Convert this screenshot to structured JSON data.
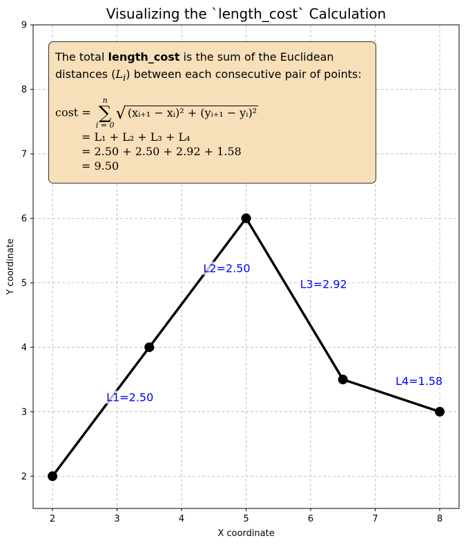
{
  "chart_data": {
    "type": "line",
    "title": "Visualizing the `length_cost` Calculation",
    "xlabel": "X coordinate",
    "ylabel": "Y coordinate",
    "xlim": [
      1.7,
      8.3
    ],
    "ylim": [
      1.5,
      9.0
    ],
    "xticks": [
      2,
      3,
      4,
      5,
      6,
      7,
      8
    ],
    "yticks": [
      2,
      3,
      4,
      5,
      6,
      7,
      8,
      9
    ],
    "grid": true,
    "series": [
      {
        "x": [
          2,
          3.5,
          5,
          6.5,
          8
        ],
        "y": [
          2,
          4,
          6,
          3.5,
          3
        ]
      }
    ],
    "annotations": [
      {
        "text": "L1=2.50",
        "x": 3.2,
        "y": 3.23
      },
      {
        "text": "L2=2.50",
        "x": 4.7,
        "y": 5.23
      },
      {
        "text": "L3=2.92",
        "x": 6.2,
        "y": 4.98
      },
      {
        "text": "L4=1.58",
        "x": 7.68,
        "y": 3.48
      }
    ],
    "colors": {
      "line": "#000000",
      "annotation": "#0000ff",
      "box": "#f7dfb9",
      "grid": "#b0b0b0"
    }
  },
  "formula_box": {
    "intro_prefix": "The total ",
    "intro_bold": "length_cost",
    "intro_suffix": " is the sum of the Euclidean",
    "line2_prefix": "distances (",
    "line2_var": "L",
    "line2_sub": "i",
    "line2_suffix": ") between each consecutive pair of points:",
    "cost_label": "cost = ",
    "sum_upper": "n",
    "sum_lower": "i = 0",
    "radicand": "(xᵢ₊₁ − xᵢ)² + (yᵢ₊₁ − yᵢ)²",
    "eq1": "= L₁ + L₂ + L₃ + L₄",
    "eq2": "= 2.50 + 2.50 + 2.92 + 1.58",
    "eq3": "= 9.50"
  }
}
